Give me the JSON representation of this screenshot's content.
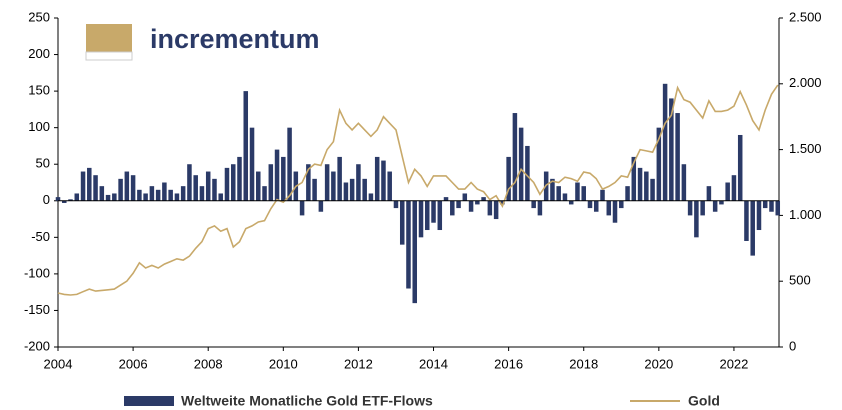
{
  "logo": {
    "text": "incrementum"
  },
  "chart_data": {
    "type": "bar-line",
    "xlim": [
      2004,
      2023.2
    ],
    "xticks": [
      2004,
      2006,
      2008,
      2010,
      2012,
      2014,
      2016,
      2018,
      2020,
      2022
    ],
    "ylim": [
      -200,
      250
    ],
    "yticks": [
      -200,
      -150,
      -100,
      -50,
      0,
      50,
      100,
      150,
      200,
      250
    ],
    "y2lim": [
      0,
      2500
    ],
    "y2ticks": [
      0,
      500,
      {
        "value": 1000,
        "label": "1.000"
      },
      {
        "value": 1500,
        "label": "1.500"
      },
      {
        "value": 2000,
        "label": "2.000"
      },
      {
        "value": 2500,
        "label": "2.500"
      }
    ],
    "x": [
      2004,
      2004.167,
      2004.333,
      2004.5,
      2004.667,
      2004.833,
      2005,
      2005.167,
      2005.333,
      2005.5,
      2005.667,
      2005.833,
      2006,
      2006.167,
      2006.333,
      2006.5,
      2006.667,
      2006.833,
      2007,
      2007.167,
      2007.333,
      2007.5,
      2007.667,
      2007.833,
      2008,
      2008.167,
      2008.333,
      2008.5,
      2008.667,
      2008.833,
      2009,
      2009.167,
      2009.333,
      2009.5,
      2009.667,
      2009.833,
      2010,
      2010.167,
      2010.333,
      2010.5,
      2010.667,
      2010.833,
      2011,
      2011.167,
      2011.333,
      2011.5,
      2011.667,
      2011.833,
      2012,
      2012.167,
      2012.333,
      2012.5,
      2012.667,
      2012.833,
      2013,
      2013.167,
      2013.333,
      2013.5,
      2013.667,
      2013.833,
      2014,
      2014.167,
      2014.333,
      2014.5,
      2014.667,
      2014.833,
      2015,
      2015.167,
      2015.333,
      2015.5,
      2015.667,
      2015.833,
      2016,
      2016.167,
      2016.333,
      2016.5,
      2016.667,
      2016.833,
      2017,
      2017.167,
      2017.333,
      2017.5,
      2017.667,
      2017.833,
      2018,
      2018.167,
      2018.333,
      2018.5,
      2018.667,
      2018.833,
      2019,
      2019.167,
      2019.333,
      2019.5,
      2019.667,
      2019.833,
      2020,
      2020.167,
      2020.333,
      2020.5,
      2020.667,
      2020.833,
      2021,
      2021.167,
      2021.333,
      2021.5,
      2021.667,
      2021.833,
      2022,
      2022.167,
      2022.333,
      2022.5,
      2022.667,
      2022.833,
      2023,
      2023.167
    ],
    "series": [
      {
        "name": "Weltweite Monatliche Gold ETF-Flows",
        "color": "#2b3a67",
        "values": [
          5,
          -3,
          2,
          10,
          40,
          45,
          35,
          20,
          8,
          10,
          30,
          40,
          35,
          15,
          10,
          20,
          15,
          25,
          15,
          10,
          20,
          50,
          35,
          20,
          40,
          30,
          10,
          45,
          50,
          60,
          150,
          100,
          40,
          20,
          50,
          70,
          60,
          100,
          40,
          -20,
          50,
          30,
          -15,
          50,
          40,
          60,
          25,
          30,
          50,
          30,
          10,
          60,
          55,
          40,
          -10,
          -60,
          -120,
          -140,
          -50,
          -40,
          -30,
          -40,
          5,
          -20,
          -10,
          10,
          -15,
          -5,
          5,
          -20,
          -25,
          -5,
          60,
          120,
          100,
          75,
          -10,
          -20,
          40,
          30,
          20,
          10,
          -5,
          25,
          20,
          -10,
          -15,
          15,
          -20,
          -30,
          -10,
          20,
          60,
          45,
          40,
          30,
          100,
          160,
          140,
          120,
          50,
          -20,
          -50,
          -20,
          20,
          -15,
          -5,
          25,
          35,
          90,
          -55,
          -75,
          -40,
          -10,
          -15,
          -20
        ]
      },
      {
        "name": "Gold",
        "color": "#c8a96a",
        "axis": "y2",
        "values": [
          410,
          400,
          395,
          400,
          420,
          440,
          425,
          430,
          435,
          440,
          470,
          500,
          560,
          640,
          600,
          620,
          600,
          630,
          650,
          670,
          660,
          690,
          750,
          800,
          900,
          920,
          880,
          900,
          760,
          800,
          900,
          920,
          950,
          960,
          1050,
          1120,
          1100,
          1150,
          1220,
          1250,
          1350,
          1390,
          1380,
          1500,
          1560,
          1800,
          1700,
          1650,
          1700,
          1650,
          1600,
          1650,
          1750,
          1700,
          1650,
          1450,
          1250,
          1350,
          1300,
          1220,
          1300,
          1300,
          1300,
          1250,
          1200,
          1200,
          1250,
          1200,
          1180,
          1120,
          1150,
          1070,
          1200,
          1250,
          1350,
          1300,
          1250,
          1160,
          1230,
          1260,
          1250,
          1290,
          1280,
          1260,
          1330,
          1320,
          1280,
          1200,
          1220,
          1250,
          1300,
          1290,
          1400,
          1500,
          1490,
          1480,
          1580,
          1700,
          1760,
          1970,
          1880,
          1860,
          1800,
          1740,
          1870,
          1790,
          1790,
          1800,
          1830,
          1940,
          1840,
          1720,
          1650,
          1800,
          1920,
          1990
        ]
      }
    ]
  }
}
